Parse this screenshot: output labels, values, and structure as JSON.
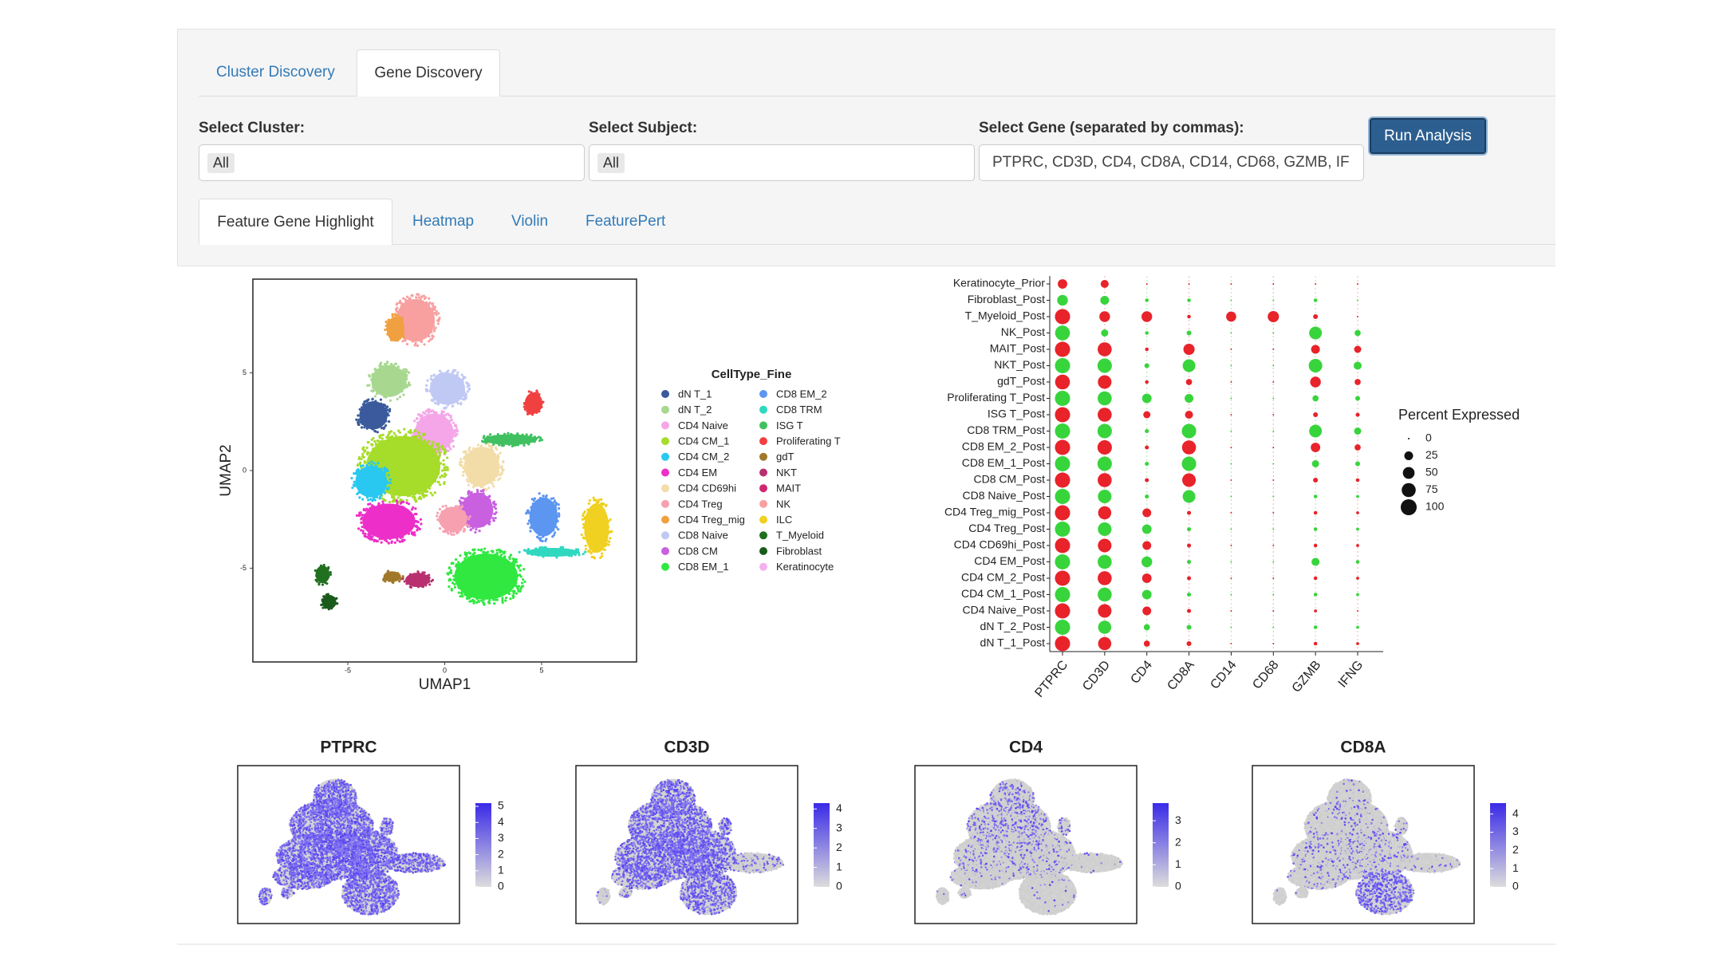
{
  "tabs": [
    "Cluster Discovery",
    "Gene Discovery"
  ],
  "filters": [
    {
      "label": "Select Cluster:",
      "value": "All"
    },
    {
      "label": "Select Subject:",
      "value": "All"
    },
    {
      "label": "Select Gene (separated by commas):",
      "value": "PTPRC, CD3D, CD4, CD8A, CD14, CD68, GZMB, IF"
    }
  ],
  "button": "Run Analysis",
  "subtabs": [
    "Feature Gene Highlight",
    "Heatmap",
    "Violin",
    "FeaturePert"
  ],
  "umap": {
    "x_label": "UMAP1",
    "y_label": "UMAP2",
    "xlim": [
      -9.9,
      9.9
    ],
    "ylim": [
      -9.8,
      9.8
    ],
    "xticks": [
      -5,
      0,
      5
    ],
    "yticks": [
      -5,
      0,
      5
    ],
    "legend_title": "CellType_Fine",
    "cell_types": [
      {
        "name": "dN T_1",
        "color": "#3a5a9c"
      },
      {
        "name": "dN T_2",
        "color": "#a8d890"
      },
      {
        "name": "CD4 Naive",
        "color": "#f4a6e8"
      },
      {
        "name": "CD4 CM_1",
        "color": "#a6dc2a"
      },
      {
        "name": "CD4 CM_2",
        "color": "#28c8f0"
      },
      {
        "name": "CD4 EM",
        "color": "#ee2ec8"
      },
      {
        "name": "CD4 CD69hi",
        "color": "#f2dca8"
      },
      {
        "name": "CD4 Treg",
        "color": "#f7a0b0"
      },
      {
        "name": "CD4 Treg_mig",
        "color": "#f0a040"
      },
      {
        "name": "CD8 Naive",
        "color": "#c0c8f4"
      },
      {
        "name": "CD8 CM",
        "color": "#c860e0"
      },
      {
        "name": "CD8 EM_1",
        "color": "#30e840"
      },
      {
        "name": "CD8 EM_2",
        "color": "#5c96f0"
      },
      {
        "name": "CD8 TRM",
        "color": "#30d8c0"
      },
      {
        "name": "ISG T",
        "color": "#40c060"
      },
      {
        "name": "Proliferating T",
        "color": "#f04040"
      },
      {
        "name": "gdT",
        "color": "#a0782a"
      },
      {
        "name": "NKT",
        "color": "#b83070"
      },
      {
        "name": "MAIT",
        "color": "#d02870"
      },
      {
        "name": "NK",
        "color": "#f8a0a0"
      },
      {
        "name": "ILC",
        "color": "#f0d020"
      },
      {
        "name": "T_Myeloid",
        "color": "#207020"
      },
      {
        "name": "Fibroblast",
        "color": "#1a5a1a"
      },
      {
        "name": "Keratinocyte",
        "color": "#f4b0f0"
      }
    ]
  },
  "dot_plot": {
    "genes": [
      "PTPRC",
      "CD3D",
      "CD4",
      "CD8A",
      "CD14",
      "CD68",
      "GZMB",
      "IFNG"
    ],
    "rows": [
      "Keratinocyte_Prior",
      "Fibroblast_Post",
      "T_Myeloid_Post",
      "NK_Post",
      "MAIT_Post",
      "NKT_Post",
      "gdT_Post",
      "Proliferating T_Post",
      "ISG T_Post",
      "CD8 TRM_Post",
      "CD8 EM_2_Post",
      "CD8 EM_1_Post",
      "CD8 CM_Post",
      "CD8 Naive_Post",
      "CD4 Treg_mig_Post",
      "CD4 Treg_Post",
      "CD4 CD69hi_Post",
      "CD4 EM_Post",
      "CD4 CM_2_Post",
      "CD4 CM_1_Post",
      "CD4 Naive_Post",
      "dN T_2_Post",
      "dN T_1_Post"
    ],
    "percent": [
      [
        30,
        20,
        0,
        0,
        0,
        0,
        0,
        0
      ],
      [
        40,
        25,
        2,
        2,
        0,
        0,
        2,
        0
      ],
      [
        90,
        40,
        40,
        2,
        35,
        45,
        5,
        0
      ],
      [
        85,
        15,
        2,
        5,
        0,
        0,
        60,
        10
      ],
      [
        90,
        75,
        2,
        45,
        0,
        0,
        25,
        15
      ],
      [
        90,
        80,
        5,
        60,
        0,
        0,
        70,
        20
      ],
      [
        85,
        70,
        2,
        10,
        0,
        0,
        40,
        10
      ],
      [
        90,
        75,
        30,
        25,
        0,
        0,
        10,
        5
      ],
      [
        90,
        75,
        15,
        20,
        0,
        0,
        5,
        3
      ],
      [
        90,
        80,
        3,
        80,
        0,
        0,
        60,
        15
      ],
      [
        90,
        80,
        3,
        75,
        0,
        0,
        30,
        10
      ],
      [
        90,
        80,
        3,
        80,
        0,
        0,
        15,
        5
      ],
      [
        90,
        75,
        3,
        70,
        0,
        0,
        5,
        2
      ],
      [
        90,
        70,
        3,
        60,
        0,
        0,
        2,
        1
      ],
      [
        90,
        65,
        25,
        3,
        0,
        0,
        2,
        1
      ],
      [
        90,
        70,
        30,
        3,
        0,
        0,
        2,
        1
      ],
      [
        90,
        70,
        25,
        3,
        0,
        0,
        2,
        1
      ],
      [
        90,
        75,
        40,
        3,
        0,
        0,
        20,
        2
      ],
      [
        90,
        75,
        30,
        3,
        0,
        0,
        2,
        1
      ],
      [
        90,
        75,
        30,
        3,
        0,
        0,
        2,
        1
      ],
      [
        90,
        70,
        25,
        3,
        0,
        0,
        1,
        0
      ],
      [
        90,
        65,
        10,
        5,
        0,
        0,
        2,
        1
      ],
      [
        90,
        65,
        10,
        5,
        0,
        0,
        2,
        1
      ]
    ],
    "colors": [
      "#e8232a",
      "#38d43c"
    ],
    "legend_title": "Percent Expressed",
    "size_legend": [
      0,
      25,
      50,
      75,
      100
    ]
  },
  "feature_plots": [
    {
      "title": "PTPRC",
      "scale_lim": [
        0,
        5.2
      ],
      "scale_ticks": [
        0,
        1,
        2,
        3,
        4,
        5
      ]
    },
    {
      "title": "CD3D",
      "scale_lim": [
        0,
        4.3
      ],
      "scale_ticks": [
        0,
        1,
        2,
        3,
        4
      ]
    },
    {
      "title": "CD4",
      "scale_lim": [
        0,
        3.8
      ],
      "scale_ticks": [
        0,
        1,
        2,
        3
      ]
    },
    {
      "title": "CD8A",
      "scale_lim": [
        0,
        4.6
      ],
      "scale_ticks": [
        0,
        1,
        2,
        3,
        4
      ]
    }
  ]
}
